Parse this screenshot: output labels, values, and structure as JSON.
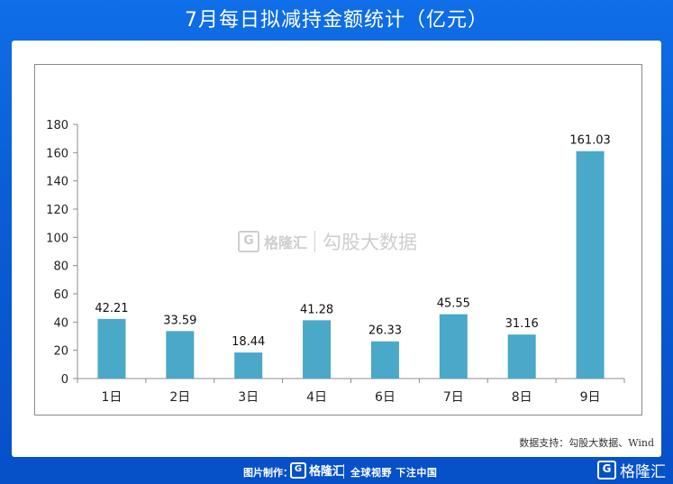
{
  "title": "7月每日拟减持金额统计（亿元）",
  "source": "数据支持：勾股大数据、Wind",
  "watermark": {
    "logo_glyph": "G",
    "brand": "格隆汇",
    "product": "勾股大数据"
  },
  "footer": {
    "made_by": "图片制作：",
    "brand": "格隆汇",
    "logo_glyph": "G",
    "slogan": "全球视野 下注中国",
    "corner_brand": "格隆汇"
  },
  "colors": {
    "bar": "#4aa8c8",
    "axis": "#8c8c8c",
    "background": "#0b5fd6"
  },
  "chart_data": {
    "type": "bar",
    "title": "7月每日拟减持金额统计（亿元）",
    "categories": [
      "1日",
      "2日",
      "3日",
      "4日",
      "6日",
      "7日",
      "8日",
      "9日"
    ],
    "values": [
      42.21,
      33.59,
      18.44,
      41.28,
      26.33,
      45.55,
      31.16,
      161.03
    ],
    "data_labels": [
      "42.21",
      "33.59",
      "18.44",
      "41.28",
      "26.33",
      "45.55",
      "31.16",
      "161.03"
    ],
    "yticks": [
      0,
      20,
      40,
      60,
      80,
      100,
      120,
      140,
      160,
      180
    ],
    "ylim": [
      0,
      180
    ],
    "xlabel": "",
    "ylabel": "",
    "grid": false,
    "legend": "none"
  }
}
